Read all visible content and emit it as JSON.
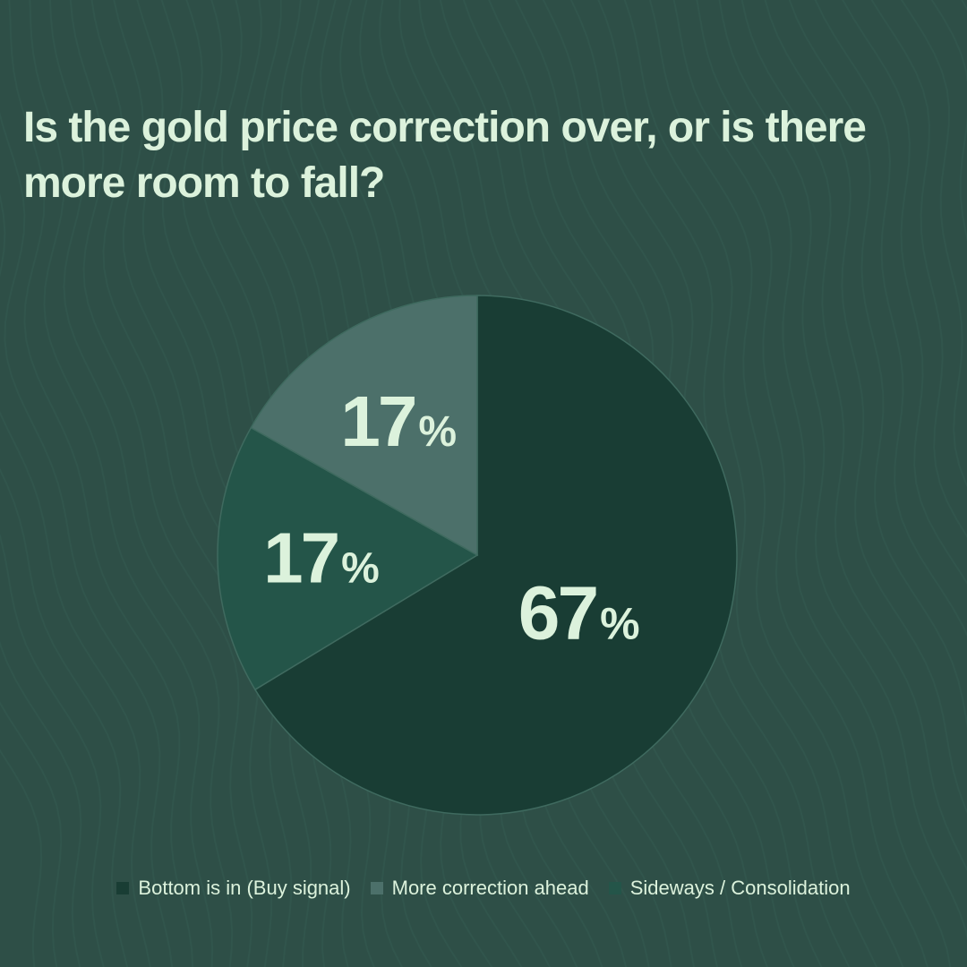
{
  "title": "Is the gold price correction over, or is there more room to fall?",
  "colors": {
    "background": "#2e4f47",
    "text": "#dcf2dc",
    "bottom_is_in": "#193d34",
    "more_correction": "#4c706a",
    "sideways": "#245549"
  },
  "chart_data": {
    "type": "pie",
    "title": "Is the gold price correction over, or is there more room to fall?",
    "slices": [
      {
        "label": "Bottom is in (Buy signal)",
        "value": 67,
        "display_number": "67",
        "display_unit": "%",
        "color": "#193d34"
      },
      {
        "label": "Sideways / Consolidation",
        "value": 17,
        "display_number": "17",
        "display_unit": "%",
        "color": "#245549"
      },
      {
        "label": "More correction ahead",
        "value": 17,
        "display_number": "17",
        "display_unit": "%",
        "color": "#4c706a"
      }
    ],
    "legend": [
      {
        "label": "Bottom is in (Buy signal)",
        "color": "#193d34"
      },
      {
        "label": "More correction ahead",
        "color": "#4c706a"
      },
      {
        "label": "Sideways / Consolidation",
        "color": "#245549"
      }
    ],
    "legend_placement": "bottom"
  }
}
